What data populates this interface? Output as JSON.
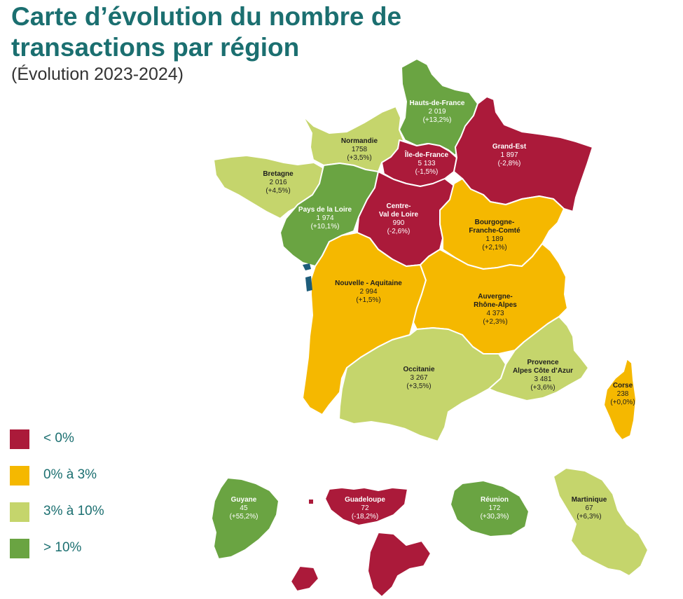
{
  "title": "Carte d’évolution du nombre de transactions par région",
  "subtitle": "(Évolution  2023-2024)",
  "colors": {
    "neg": "#ab1a3a",
    "low": "#f5b800",
    "mid": "#c5d56c",
    "high": "#6aa442"
  },
  "legend": [
    {
      "label": "< 0%",
      "color_key": "neg"
    },
    {
      "label": "0% à 3%",
      "color_key": "low"
    },
    {
      "label": "3% à 10%",
      "color_key": "mid"
    },
    {
      "label": "> 10%",
      "color_key": "high"
    }
  ],
  "regions": [
    {
      "id": "hauts-de-france",
      "name": "Hauts-de-France",
      "count": "2 019",
      "change": "(+13,2%)",
      "color_key": "high"
    },
    {
      "id": "normandie",
      "name": "Normandie",
      "count": "1758",
      "change": "(+3,5%)",
      "color_key": "mid"
    },
    {
      "id": "ile-de-france",
      "name": "Île-de-France",
      "count": "5 133",
      "change": "(-1,5%)",
      "color_key": "neg"
    },
    {
      "id": "grand-est",
      "name": "Grand-Est",
      "count": "1 897",
      "change": "(-2,8%)",
      "color_key": "neg"
    },
    {
      "id": "bretagne",
      "name": "Bretagne",
      "count": "2 016",
      "change": "(+4,5%)",
      "color_key": "mid"
    },
    {
      "id": "pays-de-la-loire",
      "name": "Pays de la Loire",
      "count": "1 974",
      "change": "(+10,1%)",
      "color_key": "high"
    },
    {
      "id": "centre-val-de-loire",
      "name": "Centre-\nVal de Loire",
      "count": "990",
      "change": "(-2,6%)",
      "color_key": "neg"
    },
    {
      "id": "bourgogne-franche-comte",
      "name": "Bourgogne-\nFranche-Comté",
      "count": "1 189",
      "change": "(+2,1%)",
      "color_key": "low"
    },
    {
      "id": "nouvelle-aquitaine",
      "name": "Nouvelle - Aquitaine",
      "count": "2 994",
      "change": "(+1,5%)",
      "color_key": "low"
    },
    {
      "id": "auvergne-rhone-alpes",
      "name": "Auvergne-\nRhône-Alpes",
      "count": "4 373",
      "change": "(+2,3%)",
      "color_key": "low"
    },
    {
      "id": "occitanie",
      "name": "Occitanie",
      "count": "3 267",
      "change": "(+3,5%)",
      "color_key": "mid"
    },
    {
      "id": "provence-alpes-cote-d-azur",
      "name": "Provence\nAlpes Côte d’Azur",
      "count": "3 481",
      "change": "(+3,6%)",
      "color_key": "mid"
    },
    {
      "id": "corse",
      "name": "Corse",
      "count": "238",
      "change": "(+0,0%)",
      "color_key": "low"
    },
    {
      "id": "guyane",
      "name": "Guyane",
      "count": "45",
      "change": "(+55,2%)",
      "color_key": "high"
    },
    {
      "id": "guadeloupe",
      "name": "Guadeloupe",
      "count": "72",
      "change": "(-18,2%)",
      "color_key": "neg"
    },
    {
      "id": "reunion",
      "name": "Réunion",
      "count": "172",
      "change": "(+30,3%)",
      "color_key": "high"
    },
    {
      "id": "martinique",
      "name": "Martinique",
      "count": "67",
      "change": "(+6,3%)",
      "color_key": "mid"
    }
  ]
}
